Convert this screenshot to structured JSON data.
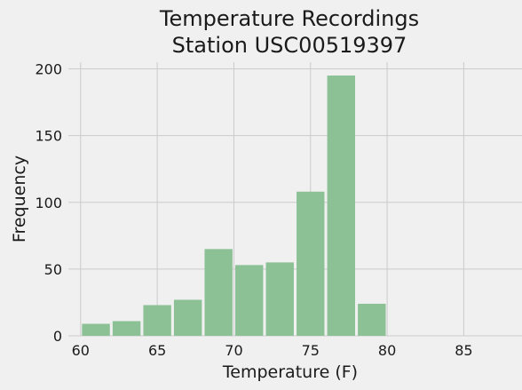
{
  "chart_data": {
    "type": "bar",
    "title": [
      "Temperature Recordings",
      "Station USC00519397"
    ],
    "xlabel": "Temperature (F)",
    "ylabel": "Frequency",
    "xlim": [
      59.2,
      88.8
    ],
    "ylim": [
      0,
      205
    ],
    "xticks": [
      60,
      65,
      70,
      75,
      80,
      85
    ],
    "yticks": [
      0,
      50,
      100,
      150,
      200
    ],
    "grid": true,
    "color": "#8cc196",
    "bins": [
      {
        "x0": 60.0,
        "x1": 62.0,
        "value": 9
      },
      {
        "x0": 62.0,
        "x1": 64.0,
        "value": 11
      },
      {
        "x0": 64.0,
        "x1": 66.0,
        "value": 23
      },
      {
        "x0": 66.0,
        "x1": 68.0,
        "value": 27
      },
      {
        "x0": 68.0,
        "x1": 70.0,
        "value": 65
      },
      {
        "x0": 70.0,
        "x1": 72.0,
        "value": 53
      },
      {
        "x0": 72.0,
        "x1": 74.0,
        "value": 55
      },
      {
        "x0": 74.0,
        "x1": 76.0,
        "value": 108
      },
      {
        "x0": 76.0,
        "x1": 78.0,
        "value": 195
      },
      {
        "x0": 78.0,
        "x1": 80.0,
        "value": 24
      }
    ]
  }
}
